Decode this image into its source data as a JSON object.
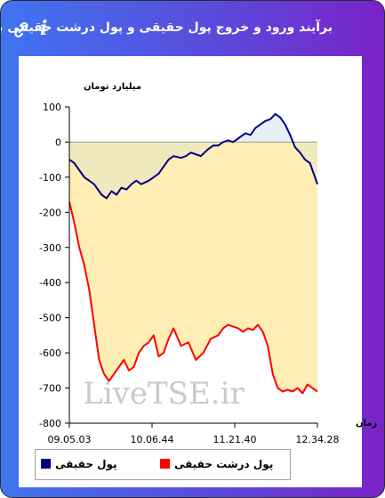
{
  "header": {
    "title": "برآیند ورود و خروج پول حقیقی و پول درشت حقیقی به بازار",
    "link_icon": "link-icon",
    "info_icon": "info-icon",
    "info_glyph": "i"
  },
  "colors": {
    "header_gradient": [
      "#3f74f0",
      "#7a22c8"
    ],
    "series_blue": "#000080",
    "series_red": "#ff0000",
    "fill_neg": "#ffedb3",
    "fill_pos": "#e6f0f5"
  },
  "chart_data": {
    "type": "line",
    "ylabel": "میلیارد تومان",
    "xlabel": "زمان",
    "ylim": [
      -800,
      100
    ],
    "yticks": [
      100,
      0,
      -100,
      -200,
      -300,
      -400,
      -500,
      -600,
      -700,
      -800
    ],
    "xticks": [
      "09.05.03",
      "10.06.44",
      "11.21.40",
      "12.34.28"
    ],
    "watermark": "LiveTSE.ir",
    "legend": [
      "پول حقیقی",
      "پول درشت حقیقی"
    ],
    "series": [
      {
        "name": "پول حقیقی",
        "x": [
          0,
          2,
          4,
          6,
          8,
          10,
          13,
          15,
          17,
          19,
          21,
          23,
          25,
          27,
          29,
          32,
          34,
          36,
          38,
          40,
          42,
          45,
          47,
          49,
          51,
          53,
          56,
          58,
          60,
          62,
          64,
          66,
          68,
          70,
          71,
          73,
          75,
          77,
          79,
          81,
          83,
          85,
          87,
          89,
          91,
          93,
          95,
          97,
          99,
          100
        ],
        "values": [
          -50,
          -60,
          -80,
          -100,
          -110,
          -120,
          -150,
          -160,
          -140,
          -150,
          -130,
          -135,
          -120,
          -110,
          -120,
          -110,
          -100,
          -90,
          -70,
          -50,
          -40,
          -45,
          -40,
          -30,
          -35,
          -40,
          -20,
          -10,
          -10,
          0,
          5,
          0,
          10,
          20,
          25,
          20,
          40,
          50,
          60,
          65,
          80,
          70,
          50,
          20,
          -15,
          -30,
          -50,
          -60,
          -100,
          -120
        ]
      },
      {
        "name": "پول درشت حقیقی",
        "x": [
          0,
          2,
          4,
          6,
          8,
          10,
          12,
          14,
          16,
          18,
          20,
          22,
          24,
          26,
          28,
          30,
          32,
          34,
          36,
          38,
          40,
          42,
          45,
          48,
          51,
          54,
          57,
          60,
          62,
          64,
          66,
          68,
          70,
          72,
          74,
          76,
          78,
          80,
          82,
          84,
          86,
          88,
          90,
          92,
          94,
          96,
          98,
          100
        ],
        "values": [
          -170,
          -230,
          -300,
          -350,
          -420,
          -520,
          -620,
          -660,
          -680,
          -660,
          -640,
          -620,
          -650,
          -640,
          -600,
          -580,
          -570,
          -550,
          -610,
          -600,
          -560,
          -530,
          -580,
          -570,
          -620,
          -600,
          -560,
          -550,
          -530,
          -520,
          -525,
          -530,
          -540,
          -530,
          -535,
          -520,
          -540,
          -580,
          -660,
          -700,
          -710,
          -705,
          -710,
          -700,
          -715,
          -690,
          -700,
          -710
        ]
      }
    ]
  }
}
